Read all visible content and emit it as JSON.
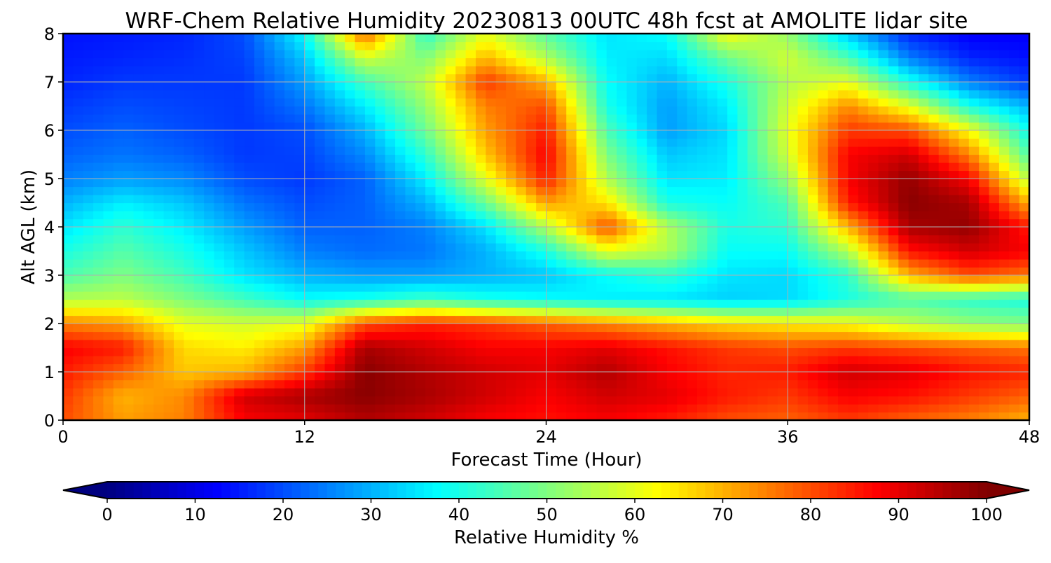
{
  "chart_data": {
    "type": "heatmap",
    "title": "WRF-Chem Relative Humidity 20230813 00UTC 48h fcst at AMOLITE lidar site",
    "xlabel": "Forecast Time (Hour)",
    "ylabel": "Alt AGL (km)",
    "xlim": [
      0,
      48
    ],
    "ylim": [
      0,
      8
    ],
    "x_ticks": [
      "0",
      "12",
      "24",
      "36",
      "48"
    ],
    "y_ticks": [
      "0",
      "1",
      "2",
      "3",
      "4",
      "5",
      "6",
      "7",
      "8"
    ],
    "grid": true,
    "colorbar": {
      "label": "Relative Humidity %",
      "range": [
        0,
        100
      ],
      "ticks": [
        "0",
        "10",
        "20",
        "30",
        "40",
        "50",
        "60",
        "70",
        "80",
        "90",
        "100"
      ],
      "extend": "both",
      "colormap": "jet"
    },
    "x": [
      0,
      3,
      6,
      9,
      12,
      15,
      18,
      21,
      24,
      27,
      30,
      33,
      36,
      39,
      42,
      45,
      48
    ],
    "y": [
      0,
      0.5,
      1,
      1.5,
      2,
      2.5,
      3,
      3.5,
      4,
      4.5,
      5,
      5.5,
      6,
      6.5,
      7,
      7.5,
      8
    ],
    "z": [
      [
        80,
        72,
        75,
        88,
        90,
        95,
        92,
        88,
        86,
        88,
        85,
        80,
        78,
        82,
        78,
        75,
        70
      ],
      [
        82,
        70,
        74,
        92,
        96,
        99,
        96,
        92,
        88,
        92,
        90,
        85,
        82,
        88,
        86,
        82,
        78
      ],
      [
        85,
        78,
        68,
        70,
        82,
        99,
        95,
        92,
        90,
        95,
        88,
        84,
        85,
        92,
        90,
        86,
        84
      ],
      [
        88,
        85,
        66,
        64,
        72,
        96,
        92,
        88,
        88,
        90,
        86,
        82,
        80,
        82,
        80,
        78,
        76
      ],
      [
        75,
        72,
        60,
        58,
        60,
        80,
        84,
        82,
        78,
        74,
        70,
        66,
        64,
        62,
        56,
        52,
        50
      ],
      [
        55,
        56,
        50,
        44,
        38,
        40,
        44,
        40,
        38,
        36,
        35,
        33,
        34,
        40,
        45,
        42,
        40
      ],
      [
        45,
        50,
        44,
        35,
        30,
        28,
        28,
        30,
        32,
        38,
        42,
        35,
        34,
        42,
        70,
        80,
        76
      ],
      [
        40,
        46,
        40,
        32,
        25,
        23,
        24,
        30,
        40,
        60,
        55,
        38,
        38,
        55,
        86,
        92,
        88
      ],
      [
        35,
        42,
        36,
        28,
        22,
        22,
        25,
        35,
        55,
        80,
        55,
        40,
        42,
        70,
        96,
        98,
        85
      ],
      [
        30,
        36,
        32,
        24,
        20,
        22,
        30,
        48,
        72,
        65,
        40,
        38,
        45,
        85,
        99,
        96,
        70
      ],
      [
        25,
        28,
        26,
        20,
        18,
        22,
        36,
        60,
        85,
        55,
        35,
        36,
        52,
        88,
        98,
        88,
        55
      ],
      [
        22,
        24,
        22,
        18,
        19,
        26,
        42,
        68,
        88,
        50,
        32,
        35,
        58,
        88,
        92,
        75,
        45
      ],
      [
        20,
        22,
        20,
        18,
        20,
        30,
        48,
        72,
        85,
        45,
        28,
        34,
        60,
        82,
        80,
        62,
        38
      ],
      [
        18,
        20,
        19,
        18,
        24,
        36,
        52,
        75,
        80,
        40,
        28,
        36,
        58,
        74,
        60,
        40,
        30
      ],
      [
        16,
        18,
        18,
        18,
        28,
        44,
        56,
        82,
        70,
        38,
        30,
        40,
        55,
        60,
        40,
        25,
        18
      ],
      [
        15,
        16,
        17,
        19,
        32,
        58,
        50,
        70,
        55,
        36,
        34,
        48,
        58,
        45,
        25,
        16,
        14
      ],
      [
        14,
        15,
        16,
        20,
        38,
        78,
        42,
        60,
        46,
        35,
        38,
        62,
        52,
        32,
        16,
        12,
        12
      ]
    ]
  }
}
